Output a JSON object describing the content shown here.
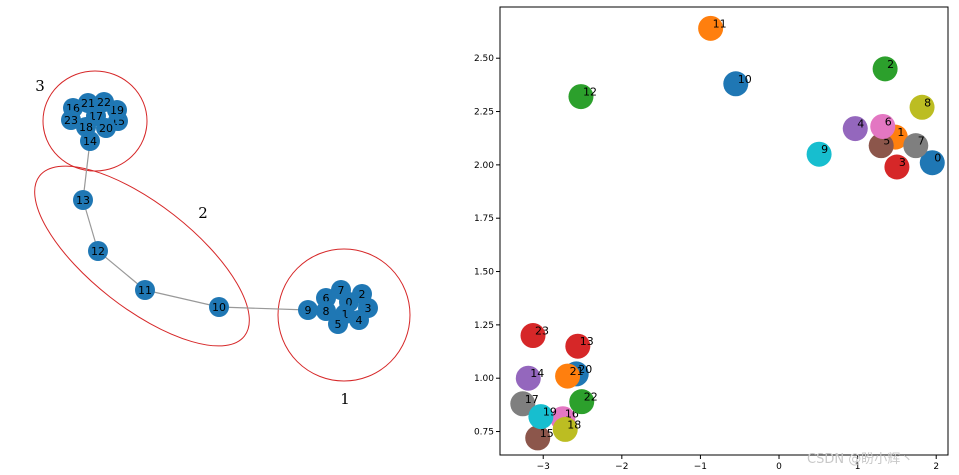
{
  "chart_data": [
    {
      "type": "network",
      "node_color": "#1f77b4",
      "edge_color": "#999999",
      "nodes": [
        "0",
        "1",
        "2",
        "3",
        "4",
        "5",
        "6",
        "7",
        "8",
        "9",
        "10",
        "11",
        "12",
        "13",
        "14",
        "15",
        "16",
        "17",
        "18",
        "19",
        "20",
        "21",
        "22",
        "23"
      ],
      "edges": [
        [
          "9",
          "8"
        ],
        [
          "9",
          "10"
        ],
        [
          "10",
          "11"
        ],
        [
          "11",
          "12"
        ],
        [
          "12",
          "13"
        ],
        [
          "13",
          "14"
        ]
      ],
      "groups": [
        {
          "label": "1",
          "members": [
            "0",
            "1",
            "2",
            "3",
            "4",
            "5",
            "6",
            "7",
            "8",
            "9"
          ]
        },
        {
          "label": "2",
          "members": [
            "10",
            "11",
            "12",
            "13"
          ]
        },
        {
          "label": "3",
          "members": [
            "14",
            "15",
            "16",
            "17",
            "18",
            "19",
            "20",
            "21",
            "22",
            "23"
          ]
        }
      ],
      "highlight_color": "#d62728"
    },
    {
      "type": "scatter",
      "xlim": [
        -3.55,
        2.15
      ],
      "ylim": [
        0.64,
        2.74
      ],
      "xticks": [
        -3,
        -2,
        -1,
        0,
        1,
        2
      ],
      "xtick_labels": [
        "−3",
        "−2",
        "−1",
        "0",
        "1",
        "2"
      ],
      "yticks": [
        0.75,
        1.0,
        1.25,
        1.5,
        1.75,
        2.0,
        2.25,
        2.5
      ],
      "ytick_labels": [
        "0.75",
        "1.00",
        "1.25",
        "1.50",
        "1.75",
        "2.00",
        "2.25",
        "2.50"
      ],
      "grid": false,
      "points": [
        {
          "label": "0",
          "x": 1.95,
          "y": 2.01,
          "color": "#1f77b4"
        },
        {
          "label": "1",
          "x": 1.48,
          "y": 2.13,
          "color": "#ff7f0e"
        },
        {
          "label": "2",
          "x": 1.35,
          "y": 2.45,
          "color": "#2ca02c"
        },
        {
          "label": "3",
          "x": 1.5,
          "y": 1.99,
          "color": "#d62728"
        },
        {
          "label": "4",
          "x": 0.97,
          "y": 2.17,
          "color": "#9467bd"
        },
        {
          "label": "5",
          "x": 1.3,
          "y": 2.09,
          "color": "#8c564b"
        },
        {
          "label": "6",
          "x": 1.32,
          "y": 2.18,
          "color": "#e377c2"
        },
        {
          "label": "7",
          "x": 1.74,
          "y": 2.09,
          "color": "#7f7f7f"
        },
        {
          "label": "8",
          "x": 1.82,
          "y": 2.27,
          "color": "#bcbd22"
        },
        {
          "label": "9",
          "x": 0.51,
          "y": 2.05,
          "color": "#17becf"
        },
        {
          "label": "10",
          "x": -0.55,
          "y": 2.38,
          "color": "#1f77b4"
        },
        {
          "label": "11",
          "x": -0.87,
          "y": 2.64,
          "color": "#ff7f0e"
        },
        {
          "label": "12",
          "x": -2.52,
          "y": 2.32,
          "color": "#2ca02c"
        },
        {
          "label": "13",
          "x": -2.56,
          "y": 1.15,
          "color": "#d62728"
        },
        {
          "label": "14",
          "x": -3.19,
          "y": 1.0,
          "color": "#9467bd"
        },
        {
          "label": "15",
          "x": -3.07,
          "y": 0.72,
          "color": "#8c564b"
        },
        {
          "label": "16",
          "x": -2.75,
          "y": 0.81,
          "color": "#e377c2"
        },
        {
          "label": "17",
          "x": -3.26,
          "y": 0.88,
          "color": "#7f7f7f"
        },
        {
          "label": "18",
          "x": -2.72,
          "y": 0.76,
          "color": "#bcbd22"
        },
        {
          "label": "19",
          "x": -3.03,
          "y": 0.82,
          "color": "#17becf"
        },
        {
          "label": "20",
          "x": -2.58,
          "y": 1.02,
          "color": "#1f77b4"
        },
        {
          "label": "21",
          "x": -2.69,
          "y": 1.01,
          "color": "#ff7f0e"
        },
        {
          "label": "22",
          "x": -2.51,
          "y": 0.89,
          "color": "#2ca02c"
        },
        {
          "label": "23",
          "x": -3.13,
          "y": 1.2,
          "color": "#d62728"
        }
      ]
    }
  ],
  "watermark": "CSDN @盼小辉丶"
}
